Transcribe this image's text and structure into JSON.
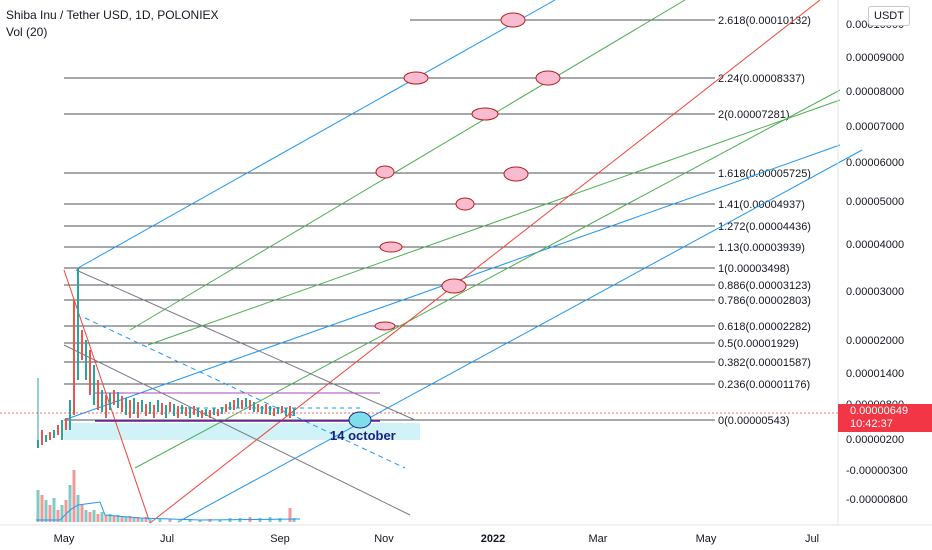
{
  "header": {
    "symbol": "Shiba Inu / Tether USD, 1D, POLONIEX",
    "indicator": "Vol (20)"
  },
  "axis_button": "USDT",
  "current_price": {
    "value": "0.00000649",
    "countdown": "10:42:37",
    "color": "#f23645"
  },
  "annotation": "14 october",
  "colors": {
    "blue": "#2196f3",
    "green": "#4caf50",
    "red": "#f44336",
    "gray": "#787b86",
    "ellipse_fill": "#f8bbd0",
    "ellipse_stroke": "#b71c1c",
    "highlight": "#b2ebf2"
  },
  "chart_data": {
    "type": "line",
    "title": "Shiba Inu / Tether USD, 1D, POLONIEX",
    "y_axis_ticks": [
      "0.00010000",
      "0.00009000",
      "0.00008000",
      "0.00007000",
      "0.00006000",
      "0.00005000",
      "0.00004000",
      "0.00003000",
      "0.00002000",
      "0.00001400",
      "0.00000800",
      "0.00000200",
      "-0.00000300",
      "-0.00000800"
    ],
    "x_axis_ticks": [
      "May",
      "Jul",
      "Sep",
      "Nov",
      "2022",
      "Mar",
      "May",
      "Jul"
    ],
    "fib_levels": [
      {
        "label": "2.618(0.00010132)",
        "ratio": 2.618,
        "price": 0.00010132
      },
      {
        "label": "2.24(0.00008337)",
        "ratio": 2.24,
        "price": 8.337e-05
      },
      {
        "label": "2(0.00007281)",
        "ratio": 2,
        "price": 7.281e-05
      },
      {
        "label": "1.618(0.00005725)",
        "ratio": 1.618,
        "price": 5.725e-05
      },
      {
        "label": "1.41(0.00004937)",
        "ratio": 1.41,
        "price": 4.937e-05
      },
      {
        "label": "1.272(0.00004436)",
        "ratio": 1.272,
        "price": 4.436e-05
      },
      {
        "label": "1.13(0.00003939)",
        "ratio": 1.13,
        "price": 3.939e-05
      },
      {
        "label": "1(0.00003498)",
        "ratio": 1,
        "price": 3.498e-05
      },
      {
        "label": "0.886(0.00003123)",
        "ratio": 0.886,
        "price": 3.123e-05
      },
      {
        "label": "0.786(0.00002803)",
        "ratio": 0.786,
        "price": 2.803e-05
      },
      {
        "label": "0.618(0.00002282)",
        "ratio": 0.618,
        "price": 2.282e-05
      },
      {
        "label": "0.5(0.00001929)",
        "ratio": 0.5,
        "price": 1.929e-05
      },
      {
        "label": "0.382(0.00001587)",
        "ratio": 0.382,
        "price": 1.587e-05
      },
      {
        "label": "0.236(0.00001176)",
        "ratio": 0.236,
        "price": 1.176e-05
      },
      {
        "label": "0(0.00000543)",
        "ratio": 0,
        "price": 5.43e-06
      }
    ]
  }
}
